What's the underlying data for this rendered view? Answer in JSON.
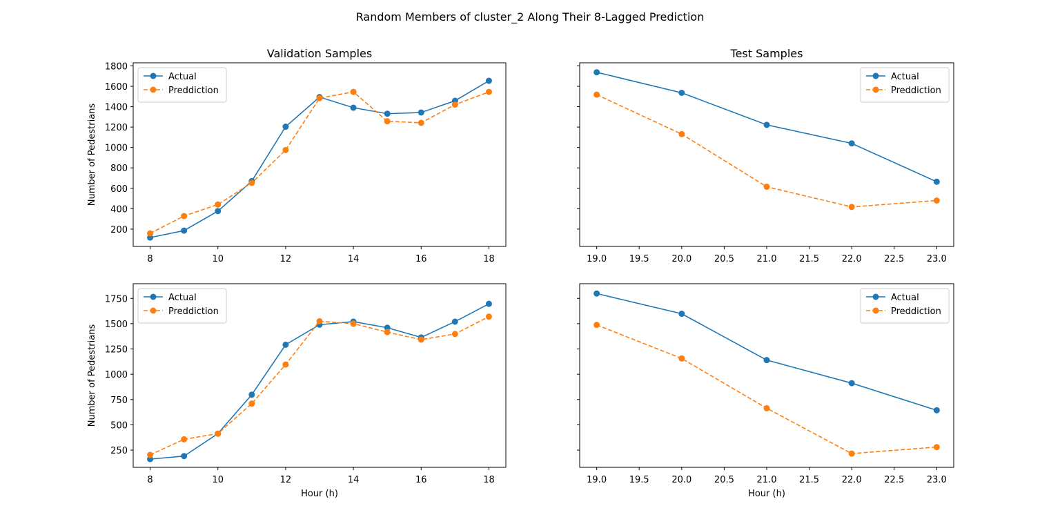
{
  "figure": {
    "title": "Random Members of cluster_2 Along Their 8-Lagged Prediction",
    "colors": {
      "actual": "#1f77b4",
      "prediction": "#ff7f0e",
      "axes": "#000000",
      "background": "#ffffff"
    }
  },
  "chart_data": [
    {
      "type": "line",
      "title": "Validation Samples",
      "xlabel": "",
      "ylabel": "Number of Pedestrians",
      "xlim": [
        7.5,
        18.5
      ],
      "ylim": [
        30,
        1830
      ],
      "xticks": [
        8,
        10,
        12,
        14,
        16,
        18
      ],
      "xtick_labels": [
        "8",
        "10",
        "12",
        "14",
        "16",
        "18"
      ],
      "yticks": [
        200,
        400,
        600,
        800,
        1000,
        1200,
        1400,
        1600,
        1800
      ],
      "ytick_labels": [
        "200",
        "400",
        "600",
        "800",
        "1000",
        "1200",
        "1400",
        "1600",
        "1800"
      ],
      "legend": "upper left",
      "grid": false,
      "x": [
        8,
        9,
        10,
        11,
        12,
        13,
        14,
        15,
        16,
        17,
        18
      ],
      "series": [
        {
          "name": "Actual",
          "style": "solid",
          "values": [
            117,
            185,
            376,
            670,
            1204,
            1494,
            1390,
            1331,
            1343,
            1458,
            1654
          ]
        },
        {
          "name": "Preddiction",
          "style": "dashed",
          "values": [
            158,
            328,
            441,
            653,
            975,
            1484,
            1545,
            1257,
            1242,
            1420,
            1545
          ]
        }
      ]
    },
    {
      "type": "line",
      "title": "Test Samples",
      "xlabel": "",
      "ylabel": "",
      "xlim": [
        18.8,
        23.2
      ],
      "ylim": [
        30,
        1830
      ],
      "xticks": [
        19.0,
        19.5,
        20.0,
        20.5,
        21.0,
        21.5,
        22.0,
        22.5,
        23.0
      ],
      "xtick_labels": [
        "19.0",
        "19.5",
        "20.0",
        "20.5",
        "21.0",
        "21.5",
        "22.0",
        "22.5",
        "23.0"
      ],
      "yticks": [
        200,
        400,
        600,
        800,
        1000,
        1200,
        1400,
        1600,
        1800
      ],
      "ytick_labels": [],
      "legend": "upper right",
      "grid": false,
      "x": [
        19,
        20,
        21,
        22,
        23
      ],
      "series": [
        {
          "name": "Actual",
          "style": "solid",
          "values": [
            1737,
            1536,
            1222,
            1040,
            664
          ]
        },
        {
          "name": "Preddiction",
          "style": "dashed",
          "values": [
            1518,
            1131,
            615,
            417,
            480
          ]
        }
      ]
    },
    {
      "type": "line",
      "title": "",
      "xlabel": "Hour (h)",
      "ylabel": "Number of Pedestrians",
      "xlim": [
        7.5,
        18.5
      ],
      "ylim": [
        80,
        1895
      ],
      "xticks": [
        8,
        10,
        12,
        14,
        16,
        18
      ],
      "xtick_labels": [
        "8",
        "10",
        "12",
        "14",
        "16",
        "18"
      ],
      "yticks": [
        250,
        500,
        750,
        1000,
        1250,
        1500,
        1750
      ],
      "ytick_labels": [
        "250",
        "500",
        "750",
        "1000",
        "1250",
        "1500",
        "1750"
      ],
      "legend": "upper left",
      "grid": false,
      "x": [
        8,
        9,
        10,
        11,
        12,
        13,
        14,
        15,
        16,
        17,
        18
      ],
      "series": [
        {
          "name": "Actual",
          "style": "solid",
          "values": [
            161,
            191,
            413,
            798,
            1292,
            1490,
            1520,
            1460,
            1364,
            1520,
            1696
          ]
        },
        {
          "name": "Preddiction",
          "style": "dashed",
          "values": [
            203,
            357,
            413,
            710,
            1096,
            1524,
            1500,
            1416,
            1342,
            1398,
            1570
          ]
        }
      ]
    },
    {
      "type": "line",
      "title": "",
      "xlabel": "Hour (h)",
      "ylabel": "",
      "xlim": [
        18.8,
        23.2
      ],
      "ylim": [
        80,
        1895
      ],
      "xticks": [
        19.0,
        19.5,
        20.0,
        20.5,
        21.0,
        21.5,
        22.0,
        22.5,
        23.0
      ],
      "xtick_labels": [
        "19.0",
        "19.5",
        "20.0",
        "20.5",
        "21.0",
        "21.5",
        "22.0",
        "22.5",
        "23.0"
      ],
      "yticks": [
        250,
        500,
        750,
        1000,
        1250,
        1500,
        1750
      ],
      "ytick_labels": [],
      "legend": "upper right",
      "grid": false,
      "x": [
        19,
        20,
        21,
        22,
        23
      ],
      "series": [
        {
          "name": "Actual",
          "style": "solid",
          "values": [
            1798,
            1598,
            1140,
            912,
            644
          ]
        },
        {
          "name": "Preddiction",
          "style": "dashed",
          "values": [
            1488,
            1156,
            664,
            216,
            280
          ]
        }
      ]
    }
  ]
}
